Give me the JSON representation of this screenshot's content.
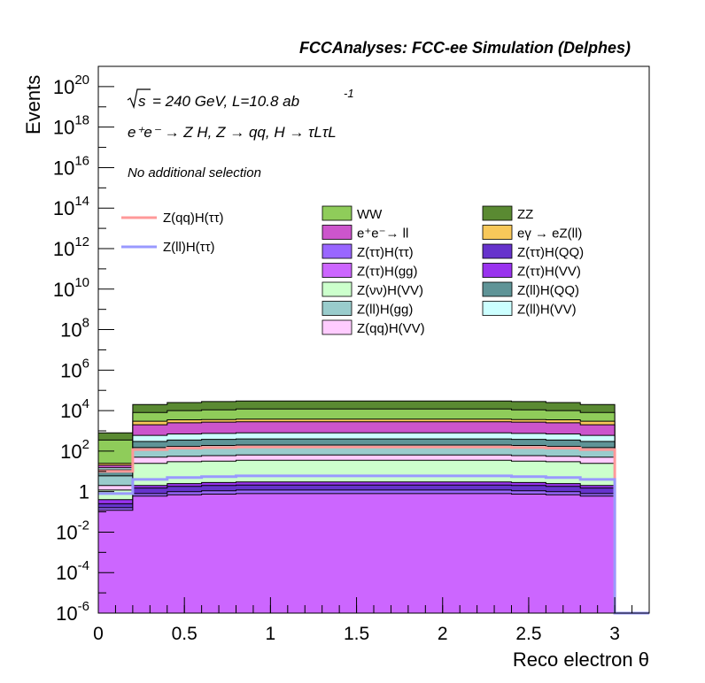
{
  "chart_data": {
    "type": "area",
    "title": "FCCAnalyses: FCC-ee Simulation (Delphes)",
    "xlabel": "Reco electron θ",
    "ylabel": "Events",
    "xlim": [
      0,
      3.2
    ],
    "ylim": [
      1e-06,
      1e+21
    ],
    "yscale": "log",
    "grid": false,
    "legend": "top-right",
    "annotations": {
      "energy_sqrt": "s",
      "energy_rest": "= 240 GeV, L=10.8 ab",
      "energy_exp": "-1",
      "process": "e⁺e⁻ → Z H, Z → qq, H → τLτL",
      "selection": "No additional selection"
    },
    "xticks": [
      0,
      0.5,
      1,
      1.5,
      2,
      2.5,
      3
    ],
    "xtick_labels": [
      "0",
      "0.5",
      "1",
      "1.5",
      "2",
      "2.5",
      "3"
    ],
    "yticks": [
      1e-06,
      0.0001,
      0.01,
      1,
      100,
      10000.0,
      1000000.0,
      100000000.0,
      10000000000.0,
      1000000000000.0,
      100000000000000.0,
      1e+16,
      1e+18,
      1e+20
    ],
    "ytick_labels": [
      {
        "base": "10",
        "exp": "-6"
      },
      {
        "base": "10",
        "exp": "-4"
      },
      {
        "base": "10",
        "exp": "-2"
      },
      {
        "base": "1",
        "exp": ""
      },
      {
        "base": "10",
        "exp": "2"
      },
      {
        "base": "10",
        "exp": "4"
      },
      {
        "base": "10",
        "exp": "6"
      },
      {
        "base": "10",
        "exp": "8"
      },
      {
        "base": "10",
        "exp": "10"
      },
      {
        "base": "10",
        "exp": "12"
      },
      {
        "base": "10",
        "exp": "14"
      },
      {
        "base": "10",
        "exp": "16"
      },
      {
        "base": "10",
        "exp": "18"
      },
      {
        "base": "10",
        "exp": "20"
      }
    ],
    "bin_edges": [
      0,
      0.2,
      0.4,
      0.6,
      0.8,
      1.0,
      1.2,
      1.4,
      1.6,
      1.8,
      2.0,
      2.2,
      2.4,
      2.6,
      2.8,
      3.0,
      3.2
    ],
    "stack_totals": [
      {
        "name": "ZZ",
        "color": "#5a8a32",
        "values": [
          800,
          20000,
          25000,
          28000,
          30000,
          30000,
          30000,
          30000,
          30000,
          30000,
          30000,
          30000,
          28000,
          25000,
          20000,
          0
        ]
      },
      {
        "name": "WW",
        "color": "#8fcc5a",
        "values": [
          350,
          8000,
          10000,
          11000,
          12000,
          12000,
          12000,
          12000,
          12000,
          12000,
          12000,
          12000,
          11000,
          10000,
          8000,
          0
        ]
      },
      {
        "name": "eγ → eZ(ll)",
        "color": "#f8c85a",
        "values": [
          25,
          3000,
          3500,
          3600,
          3800,
          3800,
          3800,
          3800,
          3800,
          3800,
          3800,
          3800,
          3600,
          3500,
          3000,
          0
        ]
      },
      {
        "name": "e⁺e⁻→ ll",
        "color": "#cc55cc",
        "values": [
          20,
          2000,
          2500,
          2700,
          2800,
          2800,
          2800,
          2800,
          2800,
          2800,
          2800,
          2800,
          2700,
          2500,
          2000,
          0
        ]
      },
      {
        "name": "Z(ll)H(VV)",
        "color": "#ccffff",
        "values": [
          15,
          600,
          700,
          750,
          800,
          800,
          800,
          800,
          800,
          800,
          800,
          800,
          750,
          700,
          600,
          0
        ]
      },
      {
        "name": "Z(ll)H(QQ)",
        "color": "#5f9497",
        "values": [
          12,
          300,
          350,
          380,
          400,
          400,
          400,
          400,
          400,
          400,
          400,
          400,
          380,
          350,
          300,
          0
        ]
      },
      {
        "name": "Z(ll)H(gg)",
        "color": "#99cccc",
        "values": [
          6,
          150,
          170,
          190,
          200,
          200,
          200,
          200,
          200,
          200,
          200,
          200,
          190,
          170,
          150,
          0
        ]
      },
      {
        "name": "Z(qq)H(VV)",
        "color": "#ffccff",
        "values": [
          2,
          50,
          55,
          60,
          65,
          65,
          65,
          65,
          65,
          65,
          65,
          65,
          60,
          55,
          50,
          0
        ]
      },
      {
        "name": "Z(νν)H(VV)",
        "color": "#ccffcc",
        "values": [
          1.2,
          25,
          30,
          32,
          35,
          35,
          35,
          35,
          35,
          35,
          35,
          35,
          32,
          30,
          25,
          0
        ]
      },
      {
        "name": "Z(ττ)H(VV)",
        "color": "#9933ee",
        "values": [
          0.4,
          2,
          2.5,
          2.8,
          3,
          3,
          3,
          3,
          3,
          3,
          3,
          3,
          2.8,
          2.5,
          2,
          0
        ]
      },
      {
        "name": "Z(ττ)H(QQ)",
        "color": "#6633cc",
        "values": [
          0.25,
          1.5,
          1.8,
          2,
          2.1,
          2.1,
          2.1,
          2.1,
          2.1,
          2.1,
          2.1,
          2.1,
          2,
          1.8,
          1.5,
          0
        ]
      },
      {
        "name": "Z(ττ)H(ττ)",
        "color": "#9966ff",
        "values": [
          0.16,
          0.8,
          1.0,
          1.1,
          1.2,
          1.2,
          1.2,
          1.2,
          1.2,
          1.2,
          1.2,
          1.2,
          1.1,
          1.0,
          0.8,
          0
        ]
      },
      {
        "name": "Z(ττ)H(gg)",
        "color": "#cc66ff",
        "values": [
          0.12,
          0.6,
          0.7,
          0.75,
          0.8,
          0.8,
          0.8,
          0.8,
          0.8,
          0.8,
          0.8,
          0.8,
          0.75,
          0.7,
          0.6,
          0
        ]
      }
    ],
    "line_series": [
      {
        "name": "Z(qq)H(ττ)",
        "color": "#ff9999",
        "values": [
          10,
          120,
          140,
          150,
          160,
          160,
          160,
          160,
          160,
          160,
          160,
          160,
          150,
          140,
          120,
          0
        ]
      },
      {
        "name": "Z(ll)H(ττ)",
        "color": "#9999ff",
        "values": [
          0.8,
          4,
          5,
          5.5,
          6,
          6,
          6,
          6,
          6,
          6,
          6,
          6,
          5.5,
          5,
          4,
          0
        ]
      }
    ],
    "legend_left": [
      {
        "name": "Z(qq)H(ττ)",
        "color": "#ff9999"
      },
      {
        "name": "Z(ll)H(ττ)",
        "color": "#9999ff"
      }
    ],
    "legend_right": [
      {
        "name": "WW",
        "color": "#8fcc5a"
      },
      {
        "name": "ZZ",
        "color": "#5a8a32"
      },
      {
        "name": "e⁺e⁻→ ll",
        "color": "#cc55cc"
      },
      {
        "name": "eγ → eZ(ll)",
        "color": "#f8c85a"
      },
      {
        "name": "Z(ττ)H(ττ)",
        "color": "#9966ff"
      },
      {
        "name": "Z(ττ)H(QQ)",
        "color": "#6633cc"
      },
      {
        "name": "Z(ττ)H(gg)",
        "color": "#cc66ff"
      },
      {
        "name": "Z(ττ)H(VV)",
        "color": "#9933ee"
      },
      {
        "name": "Z(νν)H(VV)",
        "color": "#ccffcc"
      },
      {
        "name": "Z(ll)H(QQ)",
        "color": "#5f9497"
      },
      {
        "name": "Z(ll)H(gg)",
        "color": "#99cccc"
      },
      {
        "name": "Z(ll)H(VV)",
        "color": "#ccffff"
      },
      {
        "name": "Z(qq)H(VV)",
        "color": "#ffccff"
      }
    ]
  }
}
